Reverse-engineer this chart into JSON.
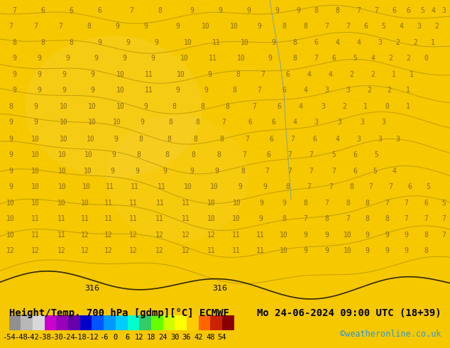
{
  "title_left": "Height/Temp. 700 hPa [gdmp][°C] ECMWF",
  "title_right": "Mo 24-06-2024 09:00 UTC (18+39)",
  "credit": "©weatheronline.co.uk",
  "colorbar_ticks": [
    -54,
    -48,
    -42,
    -38,
    -30,
    -24,
    -18,
    -12,
    -6,
    0,
    6,
    12,
    18,
    24,
    30,
    36,
    42,
    48,
    54
  ],
  "colorbar_colors": [
    "#8c8c8c",
    "#b0b0b0",
    "#d4d4d4",
    "#cc00cc",
    "#9900cc",
    "#6600cc",
    "#0000cc",
    "#0033ff",
    "#0099ff",
    "#00ccff",
    "#00ffcc",
    "#00cc66",
    "#00ff00",
    "#ccff00",
    "#ffff00",
    "#ffcc00",
    "#ff6600",
    "#cc0000",
    "#990000"
  ],
  "bg_color": "#f5c800",
  "map_bg": "#f5c800",
  "contour_color": "#a08000",
  "number_color": "#8B6914",
  "coastline_color": "#6699bb",
  "bar_height": 0.045,
  "title_fontsize": 10,
  "credit_fontsize": 8.5,
  "tick_fontsize": 7.5
}
